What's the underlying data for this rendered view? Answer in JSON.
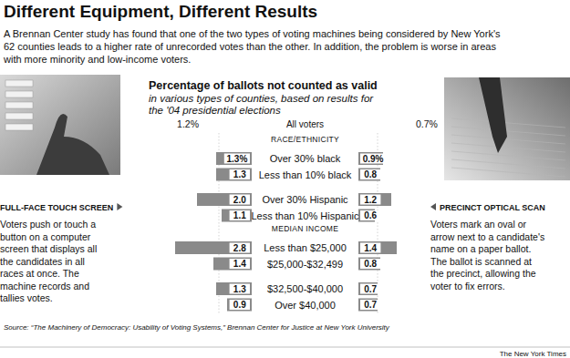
{
  "header": {
    "title": "Different Equipment, Different Results",
    "intro": [
      "A Brennan Center study has found that one of the two types of voting machines being considered by New York's",
      "62 counties leads to a higher rate of unrecorded votes than the other. In addition, the problem is worse in areas",
      "with more minority and low-income voters."
    ]
  },
  "chart_data": {
    "type": "bar",
    "orientation": "horizontal",
    "title": "Percentage of ballots not counted as valid",
    "subtitle": [
      "in various types of counties, based on results for",
      "the '04 presidential elections"
    ],
    "reference": {
      "label": "All voters",
      "values": [
        1.2,
        0.7
      ],
      "value_labels": [
        "1.2%",
        "0.7%"
      ]
    },
    "group_headers": [
      "RACE/ETHNICITY",
      null,
      null,
      null,
      "MEDIAN INCOME",
      null,
      null,
      null
    ],
    "categories": [
      "Over 30% black",
      "Less than 10% black",
      "Over 30% Hispanic",
      "Less than 10% Hispanic",
      "Less than $25,000",
      "$25,000-$32,499",
      "$32,500-$40,000",
      "Over $40,000"
    ],
    "series": [
      {
        "name": "FULL-FACE TOUCH SCREEN",
        "color": "#8a8a8a",
        "values": [
          1.3,
          1.3,
          2.0,
          1.1,
          2.8,
          1.4,
          1.3,
          0.9
        ],
        "value_labels": [
          "1.3%",
          "1.3",
          "2.0",
          "1.1",
          "2.8",
          "1.4",
          "1.3",
          "0.9"
        ]
      },
      {
        "name": "PRECINCT OPTICAL SCAN",
        "color": "#8a8a8a",
        "values": [
          0.9,
          0.8,
          1.2,
          0.6,
          1.4,
          0.8,
          0.7,
          0.7
        ],
        "value_labels": [
          "0.9%",
          "0.8",
          "1.2",
          "0.6",
          "1.4",
          "0.8",
          "0.7",
          "0.7"
        ]
      }
    ],
    "xlim": [
      0,
      3
    ],
    "tick_labels": false,
    "data_labels": true
  },
  "panels": [
    {
      "description": [
        "Voters push or touch a",
        "button on a computer",
        "screen that displays all",
        "the candidates in all",
        "races at once. The",
        "machine records and",
        "tallies votes."
      ]
    },
    {
      "description": [
        "Voters mark an oval or",
        "arrow next to a candidate's",
        "name on a paper ballot.",
        "The ballot is scanned at",
        "the precinct, allowing the",
        "voter to fix errors."
      ]
    }
  ],
  "source": "Source: “The Machinery of Democracy: Usability of Voting Systems,” Brennan Center for Justice at New York University",
  "credit": "The New York Times"
}
